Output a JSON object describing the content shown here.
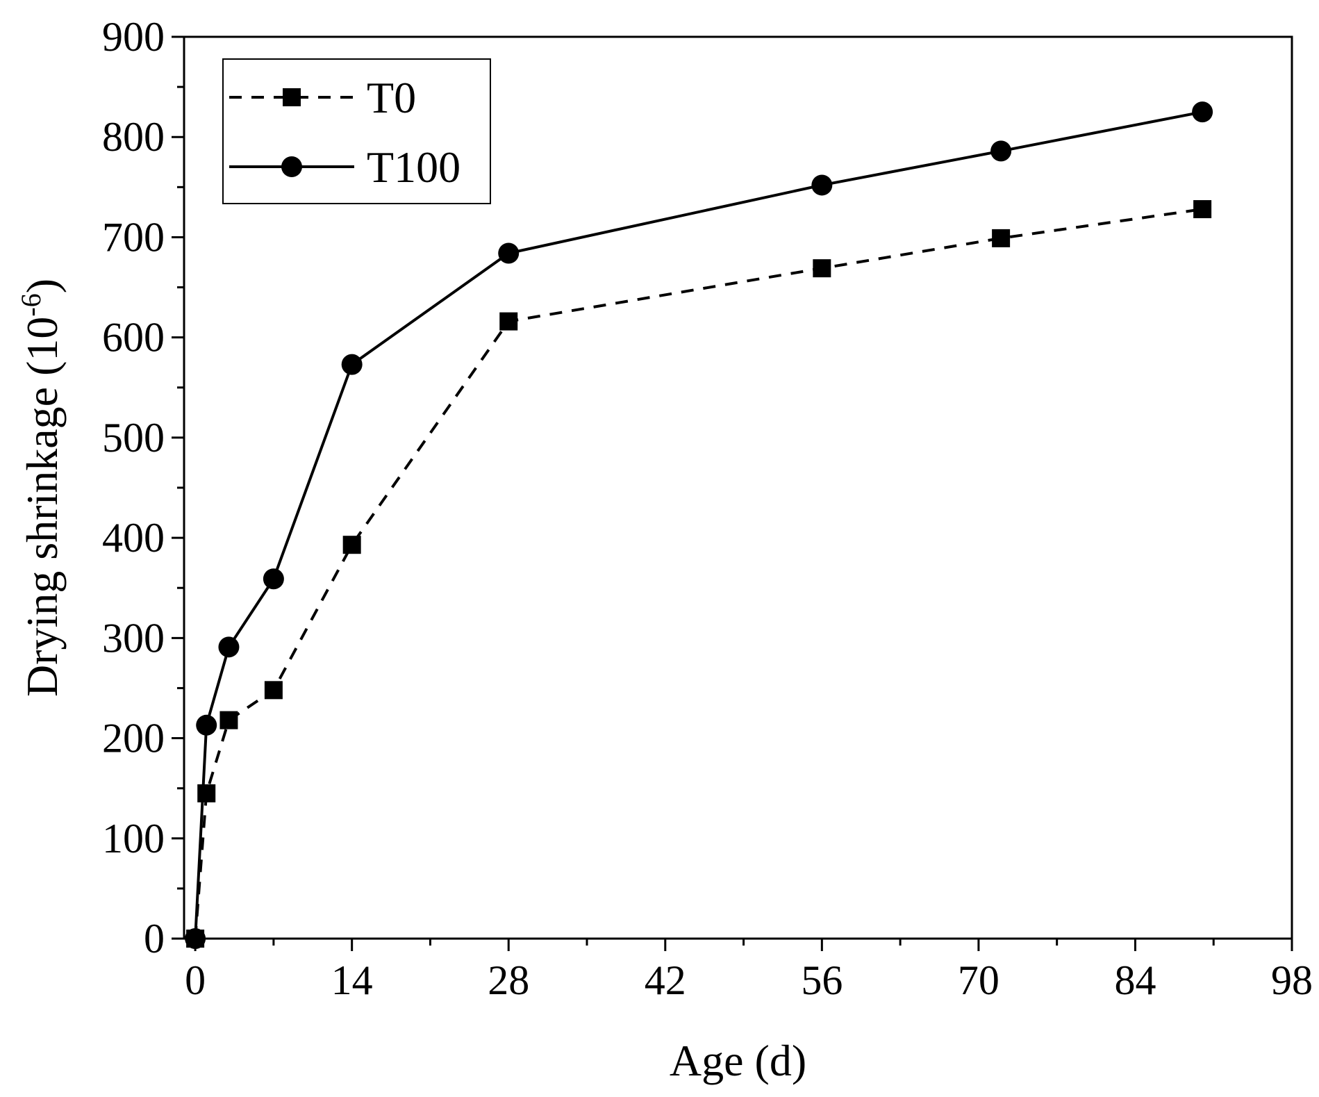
{
  "chart_data": {
    "type": "line",
    "title": "",
    "xlabel": "Age (d)",
    "ylabel_main": "Drying shrinkage (10",
    "ylabel_exp": "-6",
    "ylabel_close": ")",
    "xlim": [
      -1,
      98
    ],
    "ylim": [
      0,
      900
    ],
    "x_ticks": [
      0,
      14,
      28,
      42,
      56,
      70,
      84,
      98
    ],
    "x_tick_labels": [
      "0",
      "14",
      "28",
      "42",
      "56",
      "70",
      "84",
      "98"
    ],
    "y_ticks": [
      0,
      100,
      200,
      300,
      400,
      500,
      600,
      700,
      800,
      900
    ],
    "y_tick_labels": [
      "0",
      "100",
      "200",
      "300",
      "400",
      "500",
      "600",
      "700",
      "800",
      "900"
    ],
    "grid": false,
    "legend_position": "top-left",
    "series": [
      {
        "name": "T0",
        "line_style": "dashed",
        "marker": "square",
        "color": "#000000",
        "x": [
          0,
          1,
          3,
          7,
          14,
          28,
          56,
          72,
          90
        ],
        "values": [
          0,
          145,
          218,
          248,
          393,
          616,
          669,
          699,
          728
        ]
      },
      {
        "name": "T100",
        "line_style": "solid",
        "marker": "circle",
        "color": "#000000",
        "x": [
          0,
          1,
          3,
          7,
          14,
          28,
          56,
          72,
          90
        ],
        "values": [
          0,
          213,
          291,
          359,
          573,
          684,
          752,
          786,
          825
        ]
      }
    ]
  }
}
